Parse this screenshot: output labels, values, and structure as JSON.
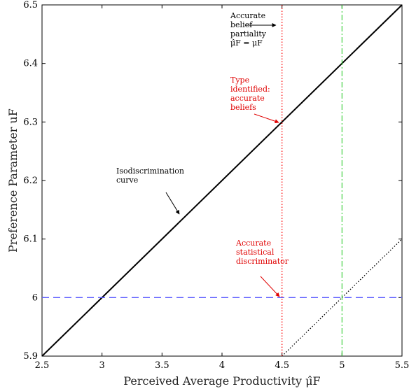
{
  "chart_data": {
    "type": "line",
    "xlabel": "Perceived Average Productivity μ̂F",
    "ylabel": "Preference Parameter uF",
    "xlim": [
      2.5,
      5.5
    ],
    "ylim": [
      5.9,
      6.5
    ],
    "xticks": [
      "2.5",
      "3",
      "3.5",
      "4",
      "4.5",
      "5",
      "5.5"
    ],
    "yticks": [
      "5.9",
      "6",
      "6.1",
      "6.2",
      "6.3",
      "6.4",
      "6.5"
    ],
    "grid": false,
    "series": [
      {
        "x": [
          2.5,
          5.5
        ],
        "y": [
          5.9,
          6.5
        ],
        "style": "solid",
        "color": "#000000"
      },
      {
        "x": [
          4.5,
          5.5
        ],
        "y": [
          5.9,
          6.1
        ],
        "style": "dotted",
        "color": "#000000"
      },
      {
        "x": [
          2.5,
          5.5
        ],
        "y": [
          6.0,
          6.0
        ],
        "style": "dashed",
        "color": "#5b5bff"
      },
      {
        "x": [
          4.5,
          4.5
        ],
        "y": [
          5.9,
          6.5
        ],
        "style": "dotted",
        "color": "#ff0000"
      },
      {
        "x": [
          5.0,
          5.0
        ],
        "y": [
          5.9,
          6.5
        ],
        "style": "dashdot",
        "color": "#33cc33"
      }
    ],
    "annotations": [
      {
        "lines": [
          "Accurate",
          "belief",
          "partiality",
          "μ̂F = μF"
        ],
        "color": "#000000"
      },
      {
        "lines": [
          "Type",
          "identified:",
          "accurate",
          "beliefs"
        ],
        "color": "#e00000",
        "point": [
          4.5,
          6.3
        ]
      },
      {
        "lines": [
          "Isodiscrimination",
          "curve"
        ],
        "color": "#000000",
        "point": [
          3.62,
          6.14
        ]
      },
      {
        "lines": [
          "Accurate",
          "statistical",
          "discriminator"
        ],
        "color": "#e00000",
        "point": [
          4.5,
          6.0
        ]
      }
    ]
  }
}
